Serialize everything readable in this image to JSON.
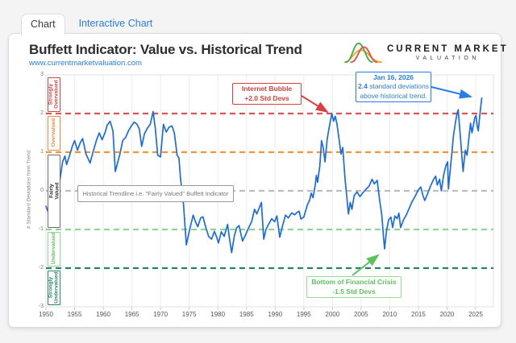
{
  "tabs": [
    {
      "label": "Chart",
      "active": true
    },
    {
      "label": "Interactive Chart",
      "active": false
    }
  ],
  "header": {
    "title": "Buffett Indicator: Value vs. Historical Trend",
    "url": "www.currentmarketvaluation.com"
  },
  "logo": {
    "line1": "CURRENT MARKET",
    "line2": "VALUATION",
    "curve_colors": {
      "green": "#3fae49",
      "red": "#e2504c",
      "orange": "#f5a623"
    }
  },
  "chart_data": {
    "type": "line",
    "title": "Buffett Indicator: Value vs. Historical Trend",
    "xlabel": "",
    "ylabel": "# Standard Deviations from Trend",
    "xlim": [
      1950,
      2028
    ],
    "ylim": [
      -3,
      3
    ],
    "grid": "vertical-only",
    "line_color": "#1a6be5",
    "x_ticks": [
      1950,
      1955,
      1960,
      1965,
      1970,
      1975,
      1980,
      1985,
      1990,
      1995,
      2000,
      2005,
      2010,
      2015,
      2020,
      2025
    ],
    "y_ticks": [
      3,
      2,
      1,
      0,
      -1,
      -2,
      -3
    ],
    "threshold_lines": [
      {
        "value": 2,
        "color": "#e25252"
      },
      {
        "value": 1,
        "color": "#f79334"
      },
      {
        "value": 0,
        "color": "#bdbdbd"
      },
      {
        "value": -1,
        "color": "#90d693"
      },
      {
        "value": -2,
        "color": "#22865f"
      }
    ],
    "zones": [
      {
        "label": "Strongly Overvalued",
        "from": 2,
        "to": 3,
        "color": "#d64545",
        "text_color": "#d64545"
      },
      {
        "label": "Overvalued",
        "from": 1,
        "to": 2,
        "color": "#f0883e",
        "text_color": "#f0883e"
      },
      {
        "label": "Fairly Valued",
        "from": -1,
        "to": 1,
        "color": "#6b6b6b",
        "text_color": "#2f2f2f"
      },
      {
        "label": "Undervalued",
        "from": -2,
        "to": -1,
        "color": "#8fd98f",
        "text_color": "#62bf62"
      },
      {
        "label": "Strongly Undervalued",
        "from": -3,
        "to": -2,
        "color": "#2a8a62",
        "text_color": "#2a8a62"
      }
    ],
    "annotations": [
      {
        "id": "trendline",
        "border": "#9a9a9a",
        "text_color": "#787878",
        "font_size": 7.5,
        "lines": [
          [
            {
              "t": "Historical Trendline i.e. \"Fairly Valued\" Buffett Indicator",
              "b": false
            }
          ]
        ]
      },
      {
        "id": "internet_bubble",
        "border": "#d9403e",
        "text_color": "#d9403e",
        "font_size": 8.5,
        "lines": [
          [
            {
              "t": "Internet Bubble",
              "b": true
            }
          ],
          [
            {
              "t": "+2.0 Std Devs",
              "b": true
            }
          ]
        ]
      },
      {
        "id": "jan_2026",
        "border": "#2b7de9",
        "text_color": "#2b7de9",
        "font_size": 8.5,
        "lines": [
          [
            {
              "t": "Jan 16, 2026",
              "b": true
            }
          ],
          [
            {
              "t": "2.4",
              "b": true
            },
            {
              "t": " standard deviations",
              "b": false
            }
          ],
          [
            {
              "t": "above historical trend.",
              "b": false
            }
          ]
        ]
      },
      {
        "id": "financial_crisis",
        "border": "#97da97",
        "text_color": "#5cc25c",
        "font_size": 8.5,
        "lines": [
          [
            {
              "t": "Bottom of Financial Crisis",
              "b": true
            }
          ],
          [
            {
              "t": "-1.5 Std Devs",
              "b": true
            }
          ]
        ]
      }
    ],
    "series": [
      {
        "name": "Buffett Indicator (standard deviations from historical trend)",
        "points": [
          [
            1950.0,
            -0.4
          ],
          [
            1950.4,
            -0.55
          ],
          [
            1950.8,
            -0.45
          ],
          [
            1951.2,
            -0.85
          ],
          [
            1951.6,
            -0.55
          ],
          [
            1952.0,
            -0.15
          ],
          [
            1952.5,
            0.35
          ],
          [
            1952.9,
            0.75
          ],
          [
            1953.3,
            0.9
          ],
          [
            1953.6,
            0.68
          ],
          [
            1954.1,
            0.9
          ],
          [
            1954.6,
            1.15
          ],
          [
            1955.0,
            1.3
          ],
          [
            1955.5,
            1.05
          ],
          [
            1956.0,
            1.25
          ],
          [
            1956.4,
            1.35
          ],
          [
            1957.0,
            0.95
          ],
          [
            1957.7,
            0.72
          ],
          [
            1958.3,
            1.05
          ],
          [
            1958.8,
            1.3
          ],
          [
            1959.3,
            1.5
          ],
          [
            1959.8,
            1.32
          ],
          [
            1960.3,
            1.5
          ],
          [
            1960.7,
            1.7
          ],
          [
            1961.2,
            1.8
          ],
          [
            1961.7,
            1.55
          ],
          [
            1962.1,
            0.5
          ],
          [
            1962.5,
            0.72
          ],
          [
            1962.9,
            0.95
          ],
          [
            1963.4,
            1.3
          ],
          [
            1963.9,
            1.38
          ],
          [
            1964.4,
            1.55
          ],
          [
            1964.9,
            1.68
          ],
          [
            1965.4,
            1.78
          ],
          [
            1965.9,
            1.72
          ],
          [
            1966.3,
            1.6
          ],
          [
            1966.7,
            1.15
          ],
          [
            1967.2,
            1.48
          ],
          [
            1967.7,
            1.62
          ],
          [
            1968.2,
            1.72
          ],
          [
            1968.7,
            2.05
          ],
          [
            1969.1,
            1.6
          ],
          [
            1969.5,
            0.92
          ],
          [
            1970.0,
            0.88
          ],
          [
            1970.5,
            1.72
          ],
          [
            1971.0,
            1.52
          ],
          [
            1971.5,
            1.65
          ],
          [
            1972.0,
            1.68
          ],
          [
            1972.4,
            1.5
          ],
          [
            1972.9,
            0.92
          ],
          [
            1973.2,
            0.85
          ],
          [
            1973.5,
            0.3
          ],
          [
            1974.0,
            -0.35
          ],
          [
            1974.5,
            -1.4
          ],
          [
            1975.0,
            -1.05
          ],
          [
            1975.7,
            -0.63
          ],
          [
            1976.1,
            -0.8
          ],
          [
            1976.5,
            -0.93
          ],
          [
            1977.0,
            -0.7
          ],
          [
            1977.4,
            -0.67
          ],
          [
            1977.9,
            -0.95
          ],
          [
            1978.4,
            -1.18
          ],
          [
            1978.9,
            -1.25
          ],
          [
            1979.4,
            -1.05
          ],
          [
            1979.8,
            -1.2
          ],
          [
            1980.1,
            -1.35
          ],
          [
            1980.6,
            -1.06
          ],
          [
            1981.1,
            -1.18
          ],
          [
            1981.7,
            -0.87
          ],
          [
            1982.0,
            -1.2
          ],
          [
            1982.4,
            -1.6
          ],
          [
            1982.9,
            -1.15
          ],
          [
            1983.3,
            -0.95
          ],
          [
            1983.7,
            -0.9
          ],
          [
            1984.3,
            -1.3
          ],
          [
            1984.8,
            -1.15
          ],
          [
            1985.3,
            -0.98
          ],
          [
            1985.9,
            -0.8
          ],
          [
            1986.4,
            -0.48
          ],
          [
            1986.8,
            -0.6
          ],
          [
            1987.2,
            -0.45
          ],
          [
            1987.6,
            -0.3
          ],
          [
            1988.0,
            -1.25
          ],
          [
            1988.4,
            -1.0
          ],
          [
            1988.9,
            -0.85
          ],
          [
            1989.4,
            -0.72
          ],
          [
            1989.9,
            -0.8
          ],
          [
            1990.3,
            -0.65
          ],
          [
            1990.8,
            -1.2
          ],
          [
            1991.3,
            -0.9
          ],
          [
            1991.8,
            -0.63
          ],
          [
            1992.3,
            -0.7
          ],
          [
            1992.9,
            -0.57
          ],
          [
            1993.4,
            -0.62
          ],
          [
            1993.9,
            -0.55
          ],
          [
            1994.2,
            -0.53
          ],
          [
            1994.5,
            -0.73
          ],
          [
            1995.0,
            -0.68
          ],
          [
            1995.6,
            -0.37
          ],
          [
            1996.0,
            -0.25
          ],
          [
            1996.3,
            -0.06
          ],
          [
            1996.6,
            -0.18
          ],
          [
            1997.0,
            0.15
          ],
          [
            1997.2,
            0.4
          ],
          [
            1997.4,
            0.22
          ],
          [
            1997.8,
            0.65
          ],
          [
            1998.1,
            1.3
          ],
          [
            1998.4,
            1.1
          ],
          [
            1998.7,
            0.75
          ],
          [
            1999.1,
            1.35
          ],
          [
            1999.5,
            1.7
          ],
          [
            1999.9,
            2.0
          ],
          [
            2000.2,
            1.8
          ],
          [
            2000.5,
            1.93
          ],
          [
            2000.8,
            1.72
          ],
          [
            2001.2,
            1.28
          ],
          [
            2001.5,
            0.95
          ],
          [
            2001.8,
            1.12
          ],
          [
            2002.2,
            0.3
          ],
          [
            2002.5,
            -0.15
          ],
          [
            2002.8,
            -0.6
          ],
          [
            2003.1,
            -0.3
          ],
          [
            2003.4,
            -0.48
          ],
          [
            2003.8,
            -0.12
          ],
          [
            2004.3,
            -0.03
          ],
          [
            2004.8,
            -0.15
          ],
          [
            2005.3,
            -0.05
          ],
          [
            2005.9,
            0.05
          ],
          [
            2006.4,
            0.12
          ],
          [
            2006.9,
            0.3
          ],
          [
            2007.3,
            0.18
          ],
          [
            2007.8,
            0.27
          ],
          [
            2008.2,
            -0.2
          ],
          [
            2008.6,
            -0.62
          ],
          [
            2008.9,
            -1.18
          ],
          [
            2009.1,
            -1.5
          ],
          [
            2009.4,
            -1.08
          ],
          [
            2009.8,
            -0.75
          ],
          [
            2010.2,
            -0.68
          ],
          [
            2010.5,
            -0.95
          ],
          [
            2010.9,
            -0.65
          ],
          [
            2011.3,
            -0.72
          ],
          [
            2011.6,
            -0.58
          ],
          [
            2011.9,
            -0.95
          ],
          [
            2012.4,
            -0.75
          ],
          [
            2012.9,
            -0.62
          ],
          [
            2013.4,
            -0.45
          ],
          [
            2013.9,
            -0.28
          ],
          [
            2014.4,
            -0.15
          ],
          [
            2014.9,
            0.0
          ],
          [
            2015.4,
            0.1
          ],
          [
            2015.8,
            -0.12
          ],
          [
            2016.1,
            -0.25
          ],
          [
            2016.6,
            -0.08
          ],
          [
            2017.1,
            0.12
          ],
          [
            2017.6,
            0.28
          ],
          [
            2018.0,
            0.38
          ],
          [
            2018.3,
            0.15
          ],
          [
            2018.7,
            0.3
          ],
          [
            2019.0,
            0.0
          ],
          [
            2019.4,
            0.4
          ],
          [
            2019.8,
            0.65
          ],
          [
            2020.1,
            0.75
          ],
          [
            2020.25,
            0.05
          ],
          [
            2020.5,
            0.45
          ],
          [
            2020.8,
            0.92
          ],
          [
            2021.1,
            1.4
          ],
          [
            2021.5,
            1.8
          ],
          [
            2021.75,
            2.0
          ],
          [
            2021.95,
            2.1
          ],
          [
            2022.2,
            1.62
          ],
          [
            2022.4,
            1.28
          ],
          [
            2022.6,
            0.88
          ],
          [
            2022.8,
            0.5
          ],
          [
            2023.0,
            0.8
          ],
          [
            2023.2,
            1.05
          ],
          [
            2023.5,
            0.92
          ],
          [
            2023.8,
            1.35
          ],
          [
            2024.1,
            1.75
          ],
          [
            2024.35,
            1.5
          ],
          [
            2024.6,
            1.7
          ],
          [
            2024.85,
            1.9
          ],
          [
            2025.05,
            1.95
          ],
          [
            2025.25,
            1.68
          ],
          [
            2025.45,
            1.55
          ],
          [
            2025.65,
            1.85
          ],
          [
            2025.85,
            2.12
          ],
          [
            2026.05,
            2.4
          ]
        ]
      }
    ],
    "latest_point": {
      "date": "Jan 16, 2026",
      "value": 2.4
    }
  }
}
